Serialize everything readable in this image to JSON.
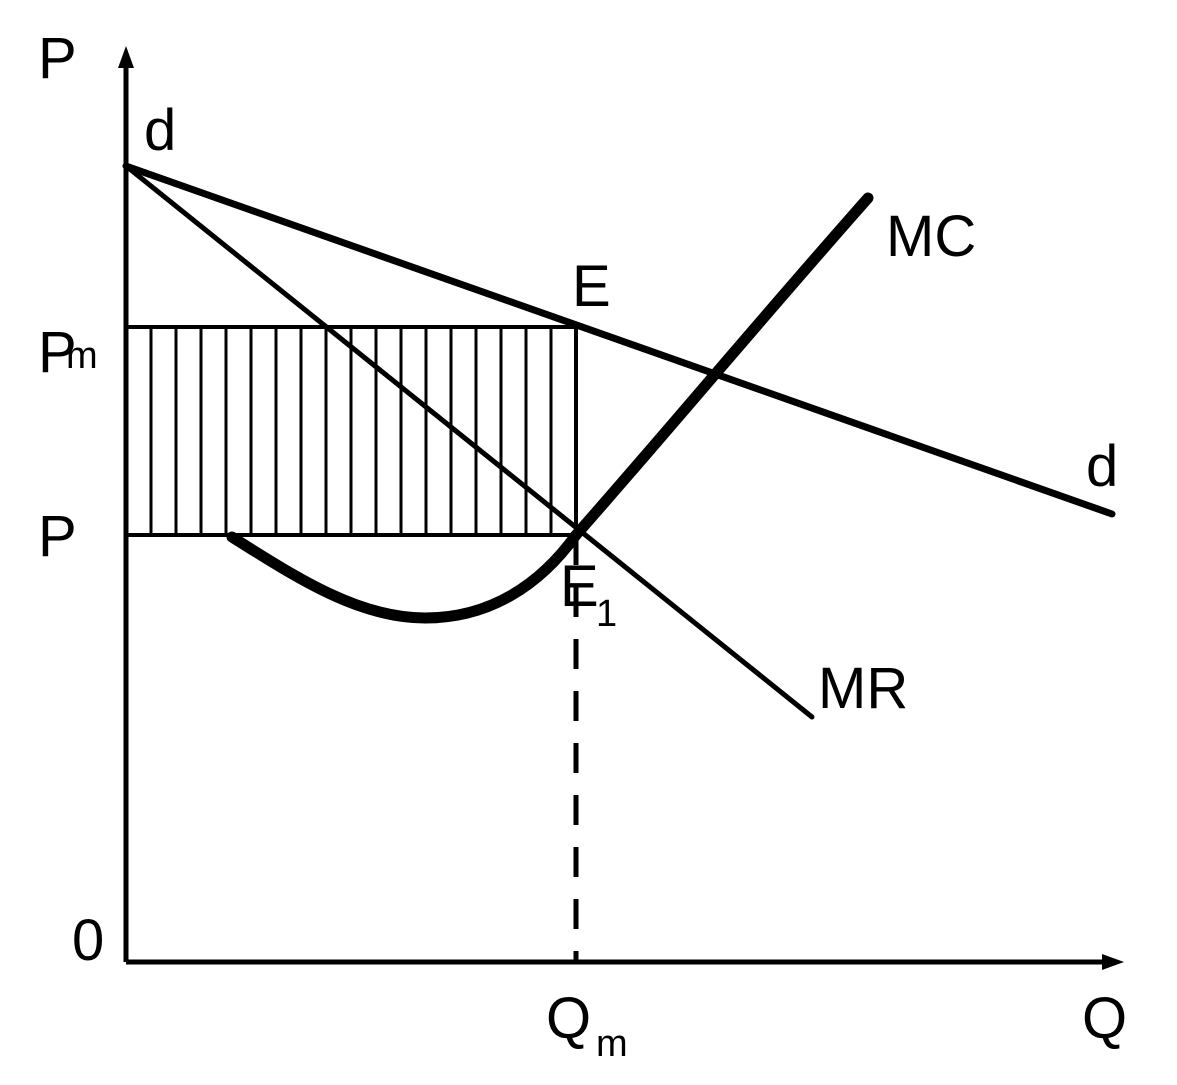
{
  "axes": {
    "y_label": "P",
    "x_label": "Q",
    "origin_label": "0"
  },
  "price_labels": {
    "pm_main": "P",
    "pm_sub": "m",
    "p": "P"
  },
  "quantity_labels": {
    "qm_main": "Q",
    "qm_sub": "m"
  },
  "curves": {
    "demand_top": "d",
    "demand_end": "d",
    "mc": "MC",
    "mr": "MR"
  },
  "points": {
    "e": "E",
    "e1_main": "E",
    "e1_sub": "1"
  },
  "colors": {
    "line": "#000000",
    "background": "#ffffff"
  }
}
